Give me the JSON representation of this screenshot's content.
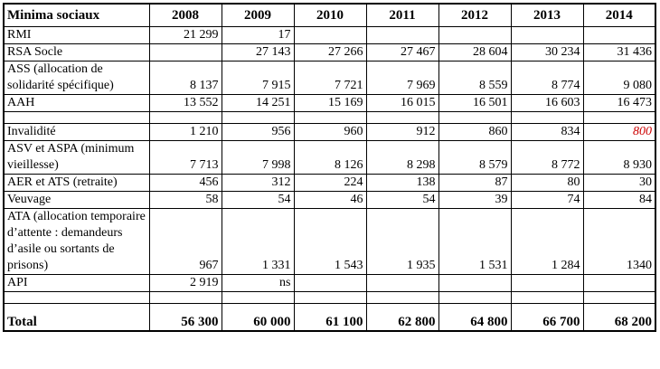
{
  "table": {
    "header": {
      "label": "Minima sociaux",
      "years": [
        "2008",
        "2009",
        "2010",
        "2011",
        "2012",
        "2013",
        "2014"
      ]
    },
    "rows": [
      {
        "label": "RMI",
        "values": [
          "21 299",
          "17",
          "",
          "",
          "",
          "",
          ""
        ]
      },
      {
        "label": "RSA Socle",
        "values": [
          "",
          "27 143",
          "27 266",
          "27 467",
          "28 604",
          "30 234",
          "31 436"
        ]
      },
      {
        "label": "ASS (allocation de solidarité spécifique)",
        "values": [
          "8 137",
          "7 915",
          "7 721",
          "7 969",
          "8 559",
          "8 774",
          "9 080"
        ]
      },
      {
        "label": "AAH",
        "values": [
          "13 552",
          "14 251",
          "15 169",
          "16 015",
          "16 501",
          "16 603",
          "16 473"
        ]
      },
      {
        "label": "Invalidité",
        "values": [
          "1 210",
          "956",
          "960",
          "912",
          "860",
          "834",
          "800"
        ]
      },
      {
        "label": "ASV et ASPA (minimum vieillesse)",
        "values": [
          "7 713",
          "7 998",
          "8 126",
          "8 298",
          "8 579",
          "8 772",
          "8 930"
        ]
      },
      {
        "label": "AER et ATS (retraite)",
        "values": [
          "456",
          "312",
          "224",
          "138",
          "87",
          "80",
          "30"
        ]
      },
      {
        "label": "Veuvage",
        "values": [
          "58",
          "54",
          "46",
          "54",
          "39",
          "74",
          "84"
        ]
      },
      {
        "label": "ATA (allocation temporaire d’attente : demandeurs d’asile ou sortants de prisons)",
        "values": [
          "967",
          "1 331",
          "1 543",
          "1 935",
          "1 531",
          "1 284",
          "1340"
        ]
      },
      {
        "label": "API",
        "values": [
          "2 919",
          "ns",
          "",
          "",
          "",
          "",
          ""
        ]
      }
    ],
    "total": {
      "label": "Total",
      "values": [
        "56 300",
        "60 000",
        "61 100",
        "62 800",
        "64 800",
        "66 700",
        "68 200"
      ]
    },
    "highlight_color": "#cc0000"
  }
}
